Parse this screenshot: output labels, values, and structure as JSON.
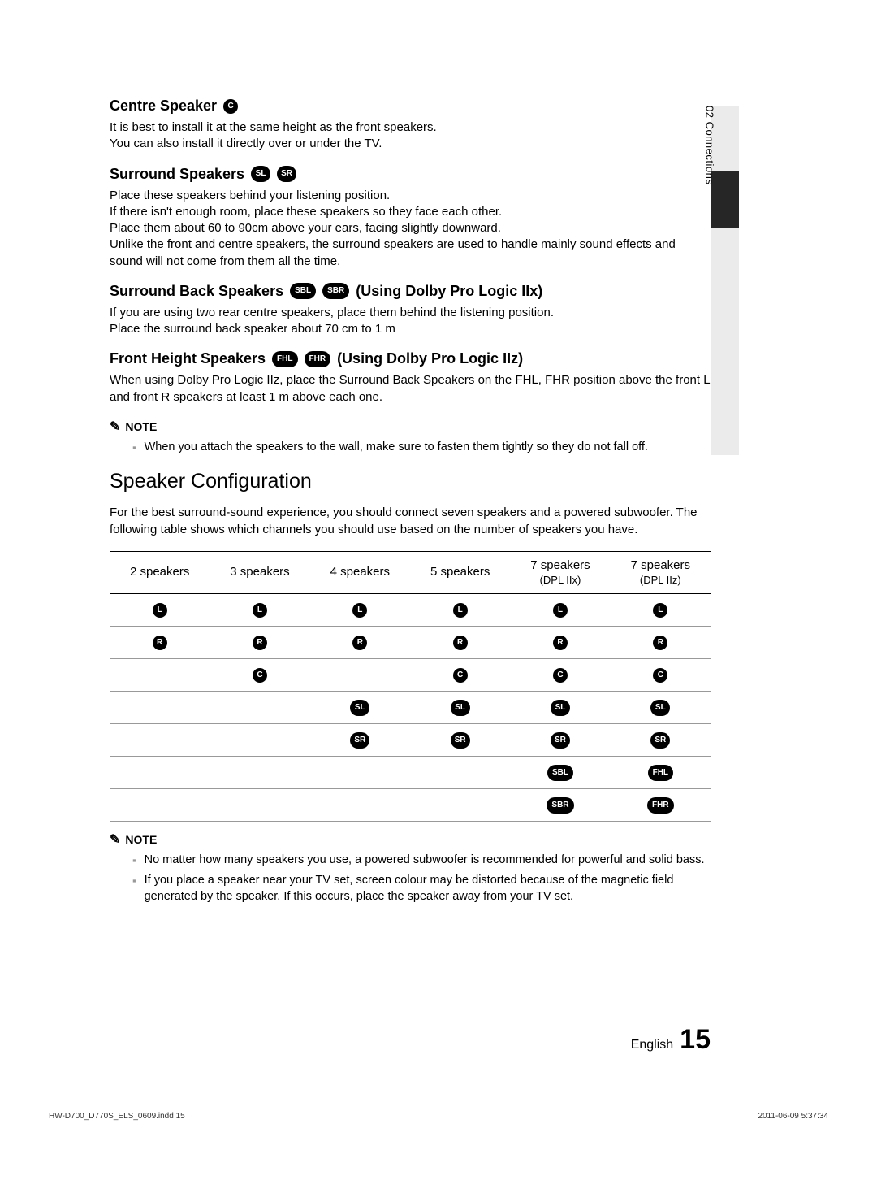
{
  "sidebar": {
    "label": "02    Connections"
  },
  "sections": {
    "centre": {
      "title": "Centre Speaker",
      "icon": "C",
      "body": "It is best to install it at the same height as the front speakers.\nYou can also install it directly over or under the TV."
    },
    "surround": {
      "title": "Surround Speakers",
      "icons": [
        "SL",
        "SR"
      ],
      "body": "Place these speakers behind your listening position.\nIf there isn't enough room, place these speakers so they face each other.\nPlace them about 60 to 90cm above your ears, facing slightly downward.\nUnlike the front and centre speakers, the surround speakers are used to handle mainly sound effects and sound will not come from them all the time."
    },
    "surround_back": {
      "title_a": "Surround Back Speakers",
      "icons": [
        "SBL",
        "SBR"
      ],
      "title_b": "(Using Dolby Pro Logic IIx)",
      "body": "If you are using two rear centre speakers, place them behind the listening position.\nPlace the surround back speaker about 70 cm to 1 m"
    },
    "front_height": {
      "title_a": "Front Height Speakers",
      "icons": [
        "FHL",
        "FHR"
      ],
      "title_b": " (Using Dolby Pro Logic IIz)",
      "body": "When using Dolby Pro Logic IIz, place the Surround Back Speakers on the FHL, FHR position above the front L and front R speakers at least 1 m above each one."
    }
  },
  "note1": {
    "label": "NOTE",
    "items": [
      "When you attach the speakers to the wall, make sure to fasten them tightly so they do not fall off."
    ]
  },
  "speaker_config": {
    "heading": "Speaker Configuration",
    "intro": "For the best surround-sound experience, you should connect seven speakers and a powered subwoofer. The following table shows which channels you should use based on the number of speakers you have.",
    "headers": [
      {
        "main": "2 speakers",
        "sub": ""
      },
      {
        "main": "3 speakers",
        "sub": ""
      },
      {
        "main": "4 speakers",
        "sub": ""
      },
      {
        "main": "5 speakers",
        "sub": ""
      },
      {
        "main": "7 speakers",
        "sub": "(DPL IIx)"
      },
      {
        "main": "7 speakers",
        "sub": "(DPL IIz)"
      }
    ],
    "rows": [
      [
        "L",
        "L",
        "L",
        "L",
        "L",
        "L"
      ],
      [
        "R",
        "R",
        "R",
        "R",
        "R",
        "R"
      ],
      [
        "",
        "C",
        "",
        "C",
        "C",
        "C"
      ],
      [
        "",
        "",
        "SL",
        "SL",
        "SL",
        "SL"
      ],
      [
        "",
        "",
        "SR",
        "SR",
        "SR",
        "SR"
      ],
      [
        "",
        "",
        "",
        "",
        "SBL",
        "FHL"
      ],
      [
        "",
        "",
        "",
        "",
        "SBR",
        "FHR"
      ]
    ]
  },
  "note2": {
    "label": "NOTE",
    "items": [
      "No matter how many speakers you use, a powered subwoofer is recommended for powerful and solid bass.",
      "If you place a speaker near your TV set, screen colour may be distorted because of the magnetic field generated by the speaker. If this occurs, place the speaker away from your TV set."
    ]
  },
  "footer": {
    "lang": "English",
    "page": "15"
  },
  "print": {
    "file": "HW-D700_D770S_ELS_0609.indd   15",
    "stamp": "2011-06-09     5:37:34"
  }
}
